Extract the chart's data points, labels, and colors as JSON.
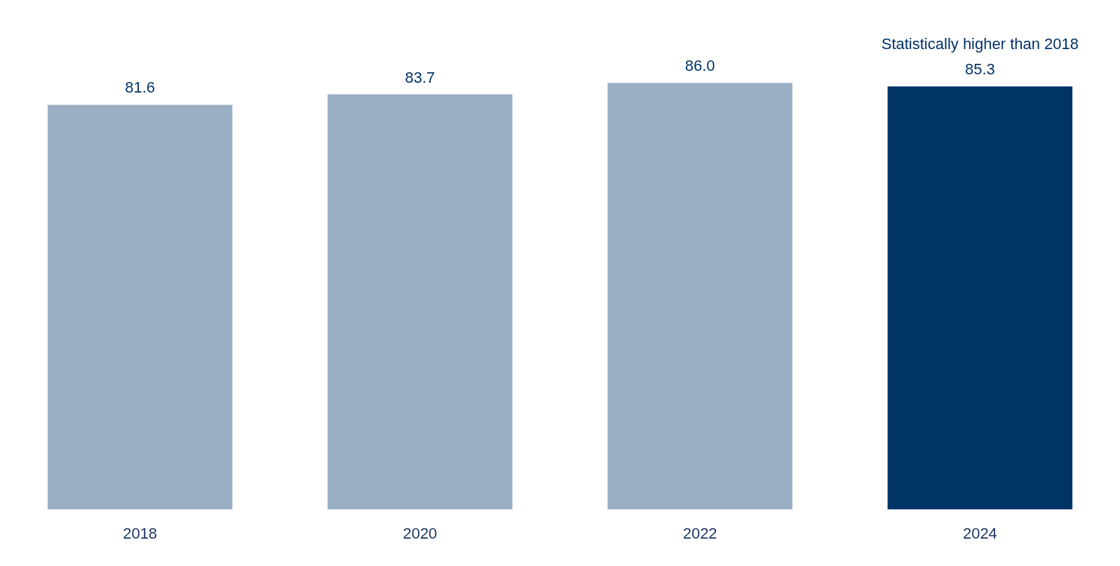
{
  "chart_data": {
    "type": "bar",
    "categories": [
      "2018",
      "2020",
      "2022",
      "2024"
    ],
    "values": [
      81.6,
      83.7,
      86.0,
      85.3
    ],
    "colors": [
      "#9aaec4",
      "#9aaec4",
      "#9aaec4",
      "#003366"
    ],
    "value_labels": [
      "81.6",
      "83.7",
      "86.0",
      "85.3"
    ],
    "grid": false,
    "legend": false,
    "tick_labels": "x",
    "annotations": [
      {
        "text": "Statistically higher than 2018",
        "x": "2024",
        "y": 85.3
      }
    ]
  }
}
